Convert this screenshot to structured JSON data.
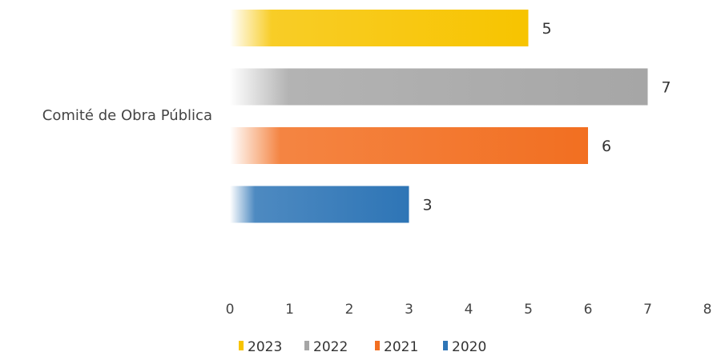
{
  "chart_data": {
    "type": "bar",
    "orientation": "horizontal",
    "categories": [
      "Comité de Obra Pública"
    ],
    "series": [
      {
        "name": "2023",
        "values": [
          5
        ],
        "color": "#F7C400"
      },
      {
        "name": "2022",
        "values": [
          7
        ],
        "color": "#A6A6A6"
      },
      {
        "name": "2021",
        "values": [
          6
        ],
        "color": "#F26F21"
      },
      {
        "name": "2020",
        "values": [
          3
        ],
        "color": "#2E75B6"
      }
    ],
    "data_labels": [
      "5",
      "7",
      "6",
      "3"
    ],
    "x_ticks": [
      "0",
      "1",
      "2",
      "3",
      "4",
      "5",
      "6",
      "7",
      "8"
    ],
    "xlim": [
      0,
      8
    ],
    "grid": false,
    "legend_position": "bottom",
    "title": "",
    "xlabel": "",
    "ylabel": ""
  }
}
